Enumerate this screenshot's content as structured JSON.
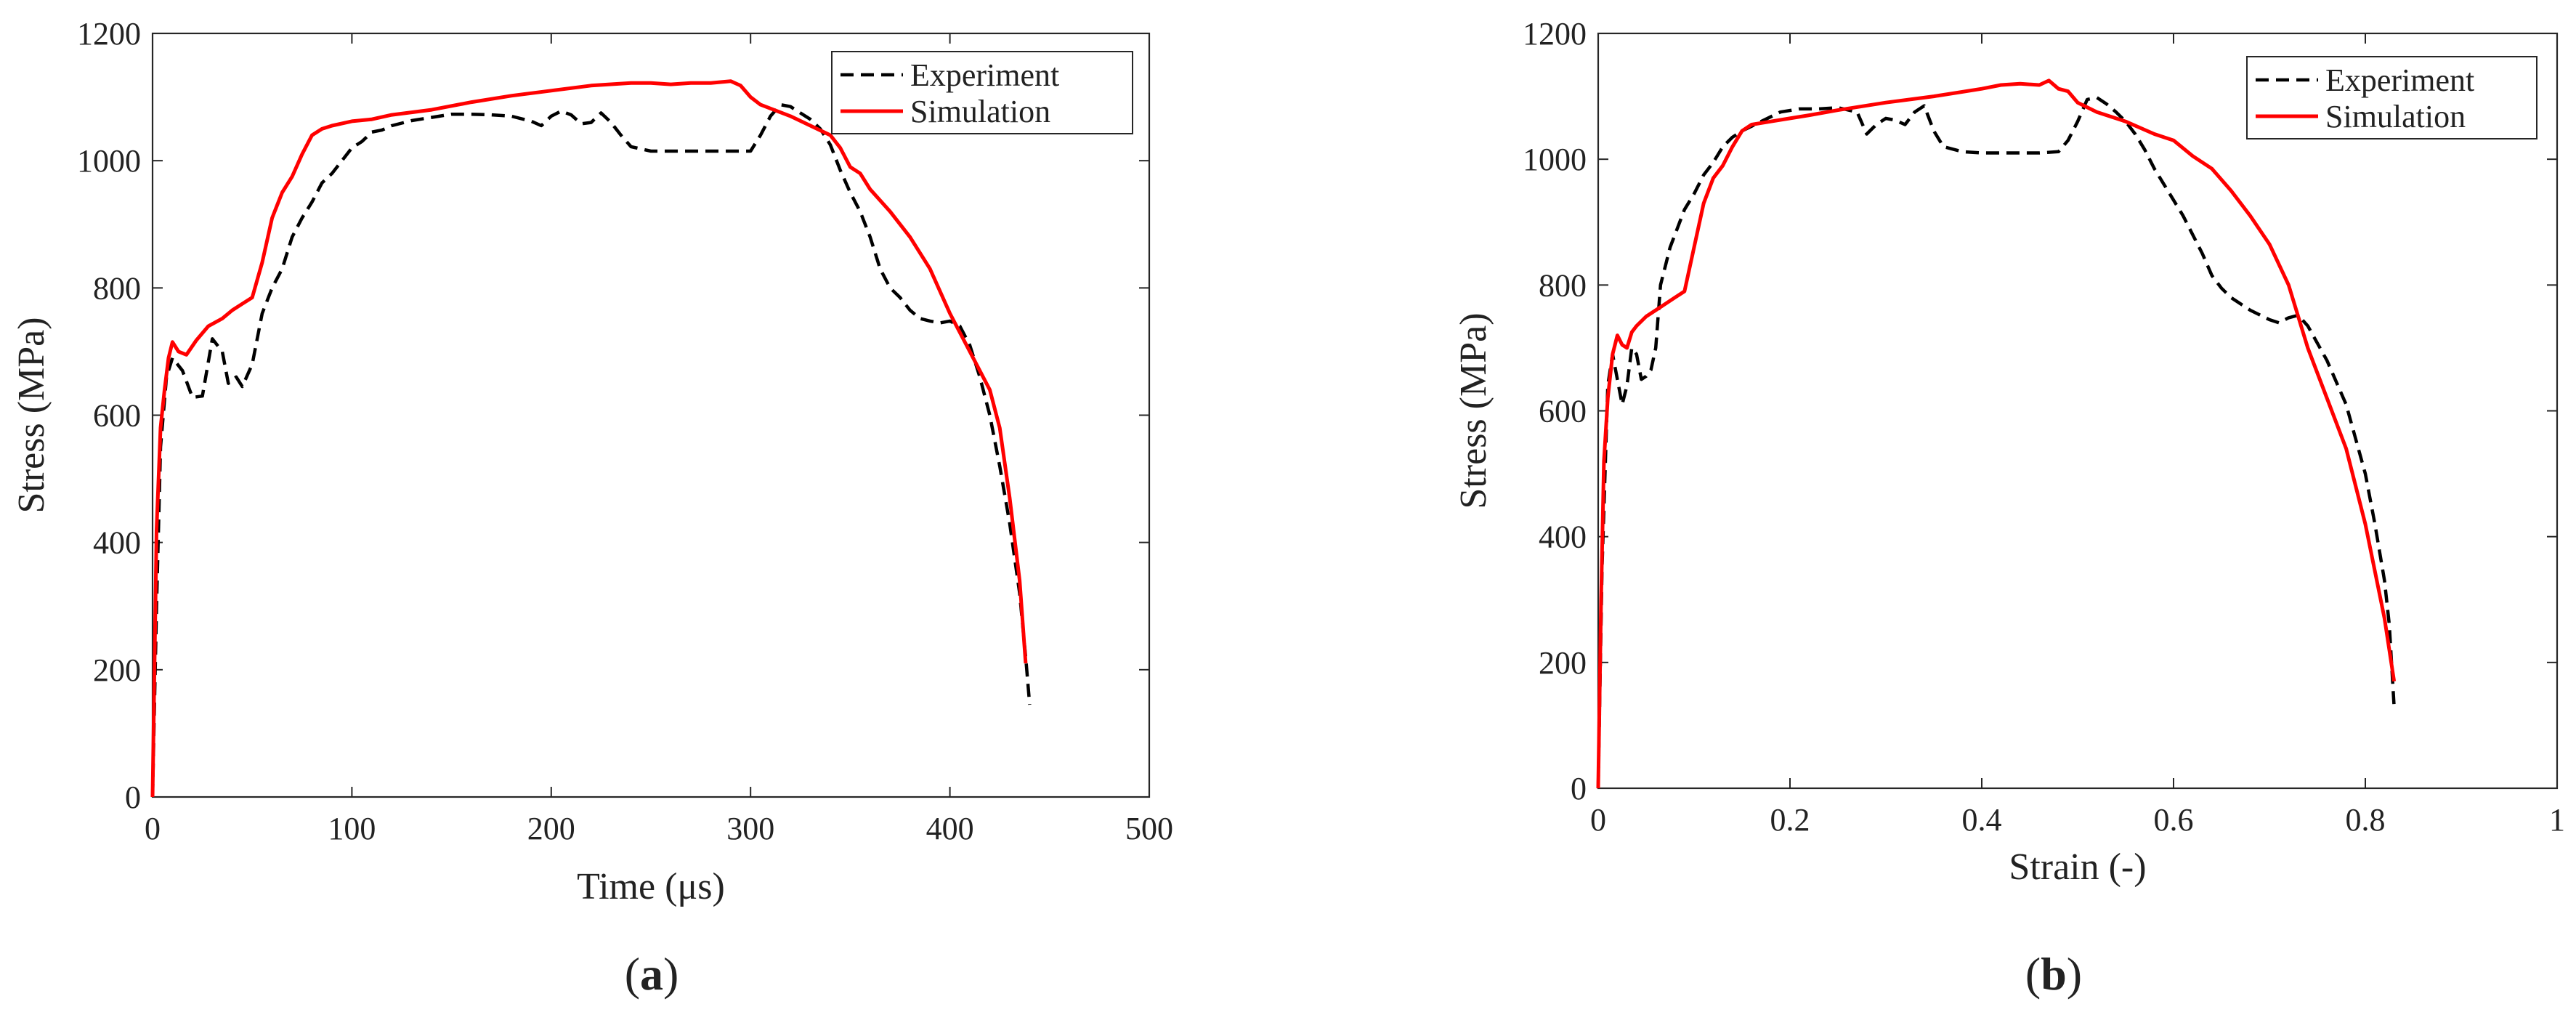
{
  "chart_data": [
    {
      "type": "line",
      "panel_label": "(a)",
      "panel_letter": "a",
      "xlabel": "Time (μs)",
      "ylabel": "Stress (MPa)",
      "xlim": [
        0,
        500
      ],
      "ylim": [
        0,
        1200
      ],
      "xticks": [
        0,
        100,
        200,
        300,
        400,
        500
      ],
      "yticks": [
        0,
        200,
        400,
        600,
        800,
        1000,
        1200
      ],
      "grid": false,
      "legend_position": "top-right",
      "series": [
        {
          "name": "Experiment",
          "color": "#000000",
          "style": "dashed",
          "points": [
            [
              0,
              0
            ],
            [
              2,
              300
            ],
            [
              4,
              550
            ],
            [
              7,
              660
            ],
            [
              10,
              690
            ],
            [
              15,
              670
            ],
            [
              20,
              628
            ],
            [
              25,
              630
            ],
            [
              30,
              720
            ],
            [
              35,
              700
            ],
            [
              38,
              650
            ],
            [
              42,
              660
            ],
            [
              45,
              645
            ],
            [
              50,
              680
            ],
            [
              55,
              760
            ],
            [
              60,
              800
            ],
            [
              65,
              830
            ],
            [
              70,
              880
            ],
            [
              75,
              910
            ],
            [
              80,
              935
            ],
            [
              85,
              965
            ],
            [
              90,
              980
            ],
            [
              95,
              1000
            ],
            [
              100,
              1020
            ],
            [
              105,
              1030
            ],
            [
              110,
              1045
            ],
            [
              115,
              1048
            ],
            [
              120,
              1055
            ],
            [
              130,
              1063
            ],
            [
              140,
              1068
            ],
            [
              150,
              1073
            ],
            [
              160,
              1073
            ],
            [
              170,
              1072
            ],
            [
              180,
              1070
            ],
            [
              190,
              1062
            ],
            [
              195,
              1055
            ],
            [
              200,
              1070
            ],
            [
              205,
              1078
            ],
            [
              210,
              1072
            ],
            [
              215,
              1058
            ],
            [
              220,
              1060
            ],
            [
              225,
              1075
            ],
            [
              230,
              1060
            ],
            [
              235,
              1040
            ],
            [
              240,
              1022
            ],
            [
              250,
              1015
            ],
            [
              260,
              1015
            ],
            [
              270,
              1015
            ],
            [
              280,
              1015
            ],
            [
              290,
              1015
            ],
            [
              300,
              1015
            ],
            [
              305,
              1040
            ],
            [
              310,
              1070
            ],
            [
              315,
              1088
            ],
            [
              320,
              1085
            ],
            [
              325,
              1075
            ],
            [
              330,
              1065
            ],
            [
              335,
              1050
            ],
            [
              340,
              1025
            ],
            [
              345,
              985
            ],
            [
              350,
              950
            ],
            [
              355,
              920
            ],
            [
              360,
              880
            ],
            [
              365,
              830
            ],
            [
              370,
              800
            ],
            [
              375,
              785
            ],
            [
              380,
              765
            ],
            [
              385,
              752
            ],
            [
              390,
              748
            ],
            [
              395,
              745
            ],
            [
              400,
              748
            ],
            [
              405,
              740
            ],
            [
              410,
              710
            ],
            [
              415,
              660
            ],
            [
              420,
              600
            ],
            [
              425,
              520
            ],
            [
              430,
              430
            ],
            [
              435,
              320
            ],
            [
              438,
              220
            ],
            [
              440,
              145
            ]
          ]
        },
        {
          "name": "Simulation",
          "color": "#ff0000",
          "style": "solid",
          "points": [
            [
              0,
              0
            ],
            [
              2,
              420
            ],
            [
              4,
              580
            ],
            [
              6,
              640
            ],
            [
              8,
              690
            ],
            [
              10,
              715
            ],
            [
              13,
              700
            ],
            [
              17,
              695
            ],
            [
              22,
              718
            ],
            [
              28,
              740
            ],
            [
              35,
              752
            ],
            [
              40,
              765
            ],
            [
              45,
              775
            ],
            [
              50,
              785
            ],
            [
              55,
              840
            ],
            [
              60,
              910
            ],
            [
              65,
              950
            ],
            [
              70,
              975
            ],
            [
              75,
              1010
            ],
            [
              80,
              1040
            ],
            [
              85,
              1050
            ],
            [
              90,
              1055
            ],
            [
              100,
              1062
            ],
            [
              110,
              1065
            ],
            [
              120,
              1072
            ],
            [
              140,
              1080
            ],
            [
              160,
              1092
            ],
            [
              180,
              1102
            ],
            [
              200,
              1110
            ],
            [
              220,
              1118
            ],
            [
              240,
              1122
            ],
            [
              250,
              1122
            ],
            [
              260,
              1120
            ],
            [
              270,
              1122
            ],
            [
              280,
              1122
            ],
            [
              290,
              1125
            ],
            [
              295,
              1118
            ],
            [
              300,
              1100
            ],
            [
              305,
              1088
            ],
            [
              320,
              1070
            ],
            [
              340,
              1040
            ],
            [
              345,
              1020
            ],
            [
              350,
              990
            ],
            [
              355,
              980
            ],
            [
              360,
              955
            ],
            [
              370,
              920
            ],
            [
              380,
              880
            ],
            [
              390,
              830
            ],
            [
              400,
              760
            ],
            [
              410,
              700
            ],
            [
              420,
              640
            ],
            [
              425,
              580
            ],
            [
              430,
              470
            ],
            [
              435,
              340
            ],
            [
              438,
              210
            ]
          ]
        }
      ]
    },
    {
      "type": "line",
      "panel_label": "(b)",
      "panel_letter": "b",
      "xlabel": "Strain (-)",
      "ylabel": "Stress (MPa)",
      "xlim": [
        0,
        1
      ],
      "ylim": [
        0,
        1200
      ],
      "xticks": [
        0,
        0.2,
        0.4,
        0.6,
        0.8,
        1
      ],
      "yticks": [
        0,
        200,
        400,
        600,
        800,
        1000,
        1200
      ],
      "grid": false,
      "legend_position": "top-right",
      "series": [
        {
          "name": "Experiment",
          "color": "#000000",
          "style": "dashed",
          "points": [
            [
              0,
              0
            ],
            [
              0.004,
              350
            ],
            [
              0.01,
              640
            ],
            [
              0.015,
              690
            ],
            [
              0.02,
              650
            ],
            [
              0.025,
              610
            ],
            [
              0.03,
              640
            ],
            [
              0.035,
              700
            ],
            [
              0.04,
              690
            ],
            [
              0.045,
              650
            ],
            [
              0.05,
              655
            ],
            [
              0.055,
              665
            ],
            [
              0.06,
              700
            ],
            [
              0.065,
              800
            ],
            [
              0.07,
              830
            ],
            [
              0.075,
              860
            ],
            [
              0.08,
              880
            ],
            [
              0.085,
              900
            ],
            [
              0.09,
              920
            ],
            [
              0.1,
              945
            ],
            [
              0.11,
              975
            ],
            [
              0.12,
              995
            ],
            [
              0.13,
              1020
            ],
            [
              0.14,
              1035
            ],
            [
              0.15,
              1045
            ],
            [
              0.17,
              1060
            ],
            [
              0.19,
              1075
            ],
            [
              0.21,
              1080
            ],
            [
              0.23,
              1080
            ],
            [
              0.25,
              1082
            ],
            [
              0.27,
              1075
            ],
            [
              0.28,
              1040
            ],
            [
              0.29,
              1055
            ],
            [
              0.3,
              1065
            ],
            [
              0.31,
              1062
            ],
            [
              0.32,
              1055
            ],
            [
              0.33,
              1075
            ],
            [
              0.34,
              1085
            ],
            [
              0.35,
              1045
            ],
            [
              0.36,
              1020
            ],
            [
              0.38,
              1012
            ],
            [
              0.4,
              1010
            ],
            [
              0.42,
              1010
            ],
            [
              0.44,
              1010
            ],
            [
              0.46,
              1010
            ],
            [
              0.48,
              1012
            ],
            [
              0.49,
              1030
            ],
            [
              0.5,
              1060
            ],
            [
              0.51,
              1095
            ],
            [
              0.52,
              1098
            ],
            [
              0.53,
              1088
            ],
            [
              0.54,
              1075
            ],
            [
              0.55,
              1060
            ],
            [
              0.56,
              1040
            ],
            [
              0.57,
              1015
            ],
            [
              0.58,
              985
            ],
            [
              0.59,
              960
            ],
            [
              0.6,
              935
            ],
            [
              0.61,
              910
            ],
            [
              0.62,
              880
            ],
            [
              0.63,
              850
            ],
            [
              0.64,
              815
            ],
            [
              0.65,
              795
            ],
            [
              0.66,
              780
            ],
            [
              0.68,
              760
            ],
            [
              0.7,
              745
            ],
            [
              0.71,
              740
            ],
            [
              0.72,
              748
            ],
            [
              0.73,
              752
            ],
            [
              0.74,
              735
            ],
            [
              0.76,
              680
            ],
            [
              0.78,
              610
            ],
            [
              0.8,
              500
            ],
            [
              0.81,
              420
            ],
            [
              0.82,
              330
            ],
            [
              0.825,
              260
            ],
            [
              0.83,
              130
            ]
          ]
        },
        {
          "name": "Simulation",
          "color": "#ff0000",
          "style": "solid",
          "points": [
            [
              0,
              0
            ],
            [
              0.003,
              300
            ],
            [
              0.006,
              520
            ],
            [
              0.01,
              620
            ],
            [
              0.015,
              690
            ],
            [
              0.02,
              720
            ],
            [
              0.025,
              705
            ],
            [
              0.03,
              700
            ],
            [
              0.035,
              725
            ],
            [
              0.04,
              735
            ],
            [
              0.05,
              750
            ],
            [
              0.06,
              760
            ],
            [
              0.07,
              770
            ],
            [
              0.08,
              780
            ],
            [
              0.09,
              790
            ],
            [
              0.1,
              860
            ],
            [
              0.11,
              930
            ],
            [
              0.12,
              970
            ],
            [
              0.13,
              990
            ],
            [
              0.14,
              1020
            ],
            [
              0.15,
              1045
            ],
            [
              0.16,
              1055
            ],
            [
              0.18,
              1060
            ],
            [
              0.2,
              1065
            ],
            [
              0.22,
              1070
            ],
            [
              0.25,
              1078
            ],
            [
              0.3,
              1090
            ],
            [
              0.35,
              1100
            ],
            [
              0.4,
              1112
            ],
            [
              0.42,
              1118
            ],
            [
              0.44,
              1120
            ],
            [
              0.46,
              1118
            ],
            [
              0.47,
              1125
            ],
            [
              0.48,
              1112
            ],
            [
              0.49,
              1108
            ],
            [
              0.5,
              1090
            ],
            [
              0.52,
              1075
            ],
            [
              0.55,
              1060
            ],
            [
              0.58,
              1040
            ],
            [
              0.6,
              1030
            ],
            [
              0.62,
              1005
            ],
            [
              0.64,
              985
            ],
            [
              0.66,
              950
            ],
            [
              0.68,
              910
            ],
            [
              0.7,
              865
            ],
            [
              0.72,
              800
            ],
            [
              0.74,
              700
            ],
            [
              0.76,
              620
            ],
            [
              0.78,
              540
            ],
            [
              0.8,
              420
            ],
            [
              0.82,
              270
            ],
            [
              0.83,
              170
            ]
          ]
        }
      ]
    }
  ]
}
